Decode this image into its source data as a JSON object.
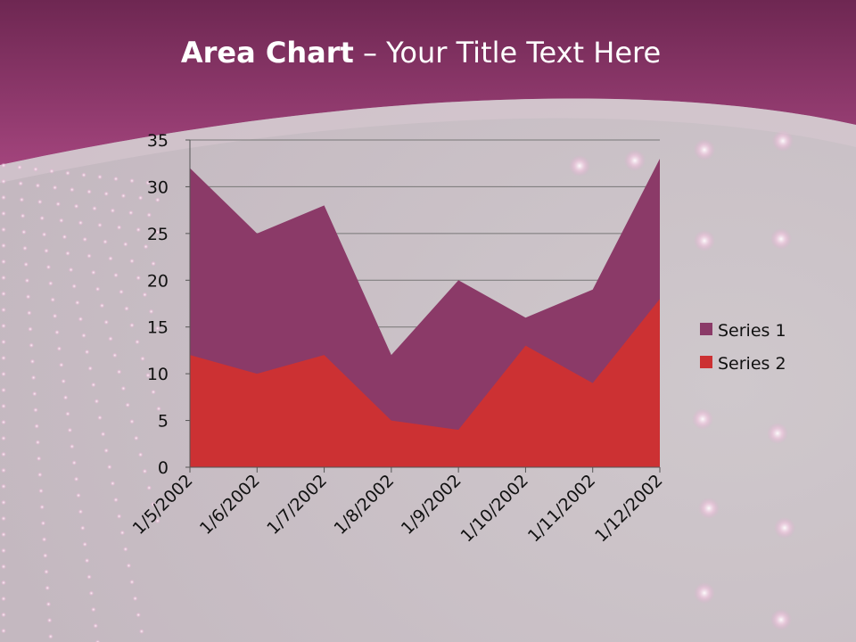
{
  "slide": {
    "title_bold": "Area Chart",
    "title_rest": " – Your Title Text Here"
  },
  "colors": {
    "header": "#8a3468",
    "series1": "#8b3a68",
    "series2": "#cc3133",
    "axis": "#555555",
    "grid": "#777777"
  },
  "chart_data": {
    "type": "area",
    "stacked": true,
    "x": [
      "1/5/2002",
      "1/6/2002",
      "1/7/2002",
      "1/8/2002",
      "1/9/2002",
      "1/10/2002",
      "1/11/2002",
      "1/12/2002"
    ],
    "series": [
      {
        "name": "Series 1",
        "values": [
          20,
          15,
          16,
          7,
          16,
          3,
          10,
          15
        ]
      },
      {
        "name": "Series 2",
        "values": [
          12,
          10,
          12,
          5,
          4,
          13,
          9,
          18
        ]
      }
    ],
    "ylim": [
      0,
      35
    ],
    "yticks": [
      0,
      5,
      10,
      15,
      20,
      25,
      30,
      35
    ],
    "grid": true,
    "legend": "right"
  }
}
